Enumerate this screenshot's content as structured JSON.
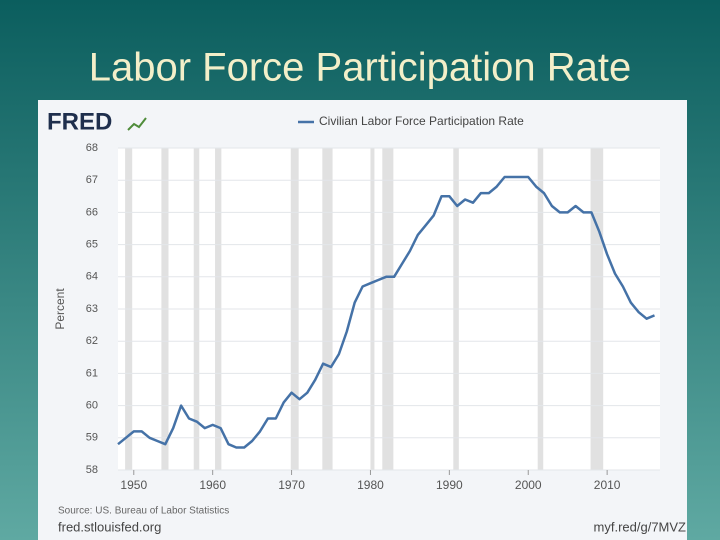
{
  "slide_title": "Labor Force Participation Rate",
  "logo": "FRED",
  "chart_data": {
    "type": "line",
    "x": [
      1948,
      1949,
      1950,
      1951,
      1952,
      1953,
      1954,
      1955,
      1956,
      1957,
      1958,
      1959,
      1960,
      1961,
      1962,
      1963,
      1964,
      1965,
      1966,
      1967,
      1968,
      1969,
      1970,
      1971,
      1972,
      1973,
      1974,
      1975,
      1976,
      1977,
      1978,
      1979,
      1980,
      1981,
      1982,
      1983,
      1984,
      1985,
      1986,
      1987,
      1988,
      1989,
      1990,
      1991,
      1992,
      1993,
      1994,
      1995,
      1996,
      1997,
      1998,
      1999,
      2000,
      2001,
      2002,
      2003,
      2004,
      2005,
      2006,
      2007,
      2008,
      2009,
      2010,
      2011,
      2012,
      2013,
      2014,
      2015,
      2016
    ],
    "series": [
      {
        "name": "Civilian Labor Force Participation Rate",
        "color": "#4572a7",
        "values": [
          58.8,
          59.0,
          59.2,
          59.2,
          59.0,
          58.9,
          58.8,
          59.3,
          60.0,
          59.6,
          59.5,
          59.3,
          59.4,
          59.3,
          58.8,
          58.7,
          58.7,
          58.9,
          59.2,
          59.6,
          59.6,
          60.1,
          60.4,
          60.2,
          60.4,
          60.8,
          61.3,
          61.2,
          61.6,
          62.3,
          63.2,
          63.7,
          63.8,
          63.9,
          64.0,
          64.0,
          64.4,
          64.8,
          65.3,
          65.6,
          65.9,
          66.5,
          66.5,
          66.2,
          66.4,
          66.3,
          66.6,
          66.6,
          66.8,
          67.1,
          67.1,
          67.1,
          67.1,
          66.8,
          66.6,
          66.2,
          66.0,
          66.0,
          66.2,
          66.0,
          66.0,
          65.4,
          64.7,
          64.1,
          63.7,
          63.2,
          62.9,
          62.7,
          62.8
        ]
      }
    ],
    "y_label": "Percent",
    "xlim": [
      1948,
      2016.7
    ],
    "xticks": [
      1950,
      1960,
      1970,
      1980,
      1990,
      2000,
      2010
    ],
    "ylim": [
      58,
      68
    ],
    "yticks": [
      58,
      59,
      60,
      61,
      62,
      63,
      64,
      65,
      66,
      67,
      68
    ],
    "grid": true,
    "recessions": [
      [
        1948.9,
        1949.8
      ],
      [
        1953.5,
        1954.4
      ],
      [
        1957.6,
        1958.3
      ],
      [
        1960.3,
        1961.1
      ],
      [
        1969.9,
        1970.9
      ],
      [
        1973.9,
        1975.2
      ],
      [
        1980.0,
        1980.5
      ],
      [
        1981.5,
        1982.9
      ],
      [
        1990.5,
        1991.2
      ],
      [
        2001.2,
        2001.9
      ],
      [
        2007.9,
        2009.5
      ]
    ],
    "source": "Source: US. Bureau of Labor Statistics",
    "site": "fred.stlouisfed.org",
    "short_link": "myf.red/g/7MVZ"
  }
}
